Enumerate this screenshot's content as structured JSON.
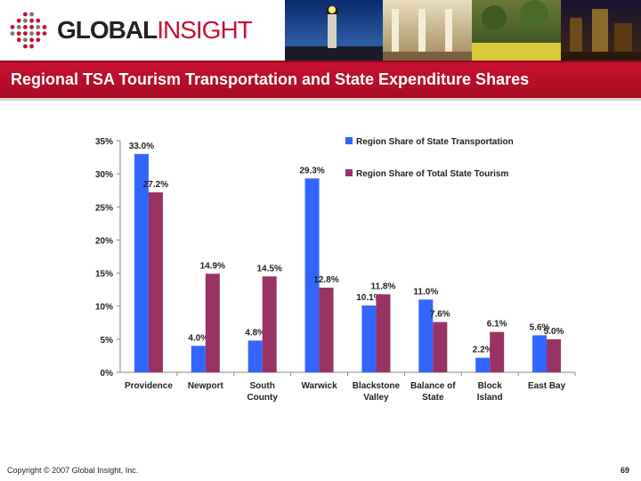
{
  "header": {
    "logo_text_a": "GLOBAL",
    "logo_text_b": "INSIGHT",
    "colors": {
      "brand_red": "#c4122f",
      "title_bar": "#c8102e"
    }
  },
  "title": "Regional TSA Tourism Transportation and State Expenditure Shares",
  "chart_data": {
    "type": "bar",
    "categories": [
      "Providence",
      "Newport",
      "South County",
      "Warwick",
      "Blackstone Valley",
      "Balance of State",
      "Block Island",
      "East Bay"
    ],
    "category_lines": [
      [
        "Providence"
      ],
      [
        "Newport"
      ],
      [
        "South",
        "County"
      ],
      [
        "Warwick"
      ],
      [
        "Blackstone",
        "Valley"
      ],
      [
        "Balance of",
        "State"
      ],
      [
        "Block",
        "Island"
      ],
      [
        "East Bay"
      ]
    ],
    "series": [
      {
        "name": "Region Share of State Transportation",
        "color": "#3366ff",
        "values": [
          33.0,
          4.0,
          4.8,
          29.3,
          10.1,
          11.0,
          2.2,
          5.6
        ],
        "labels": [
          "33.0%",
          "4.0%",
          "4.8%",
          "29.3%",
          "10.1%",
          "11.0%",
          "2.2%",
          "5.6%"
        ]
      },
      {
        "name": "Region Share of Total State Tourism",
        "color": "#993366",
        "values": [
          27.2,
          14.9,
          14.5,
          12.8,
          11.8,
          7.6,
          6.1,
          5.0
        ],
        "labels": [
          "27.2%",
          "14.9%",
          "14.5%",
          "12.8%",
          "11.8%",
          "7.6%",
          "6.1%",
          "5.0%"
        ]
      }
    ],
    "y_ticks": [
      "0%",
      "5%",
      "10%",
      "15%",
      "20%",
      "25%",
      "30%",
      "35%"
    ],
    "ylim": [
      0,
      35
    ],
    "grid": false,
    "legend_position": "top-right"
  },
  "footer": {
    "copyright": "Copyright © 2007 Global Insight, Inc.",
    "page_number": "69"
  }
}
